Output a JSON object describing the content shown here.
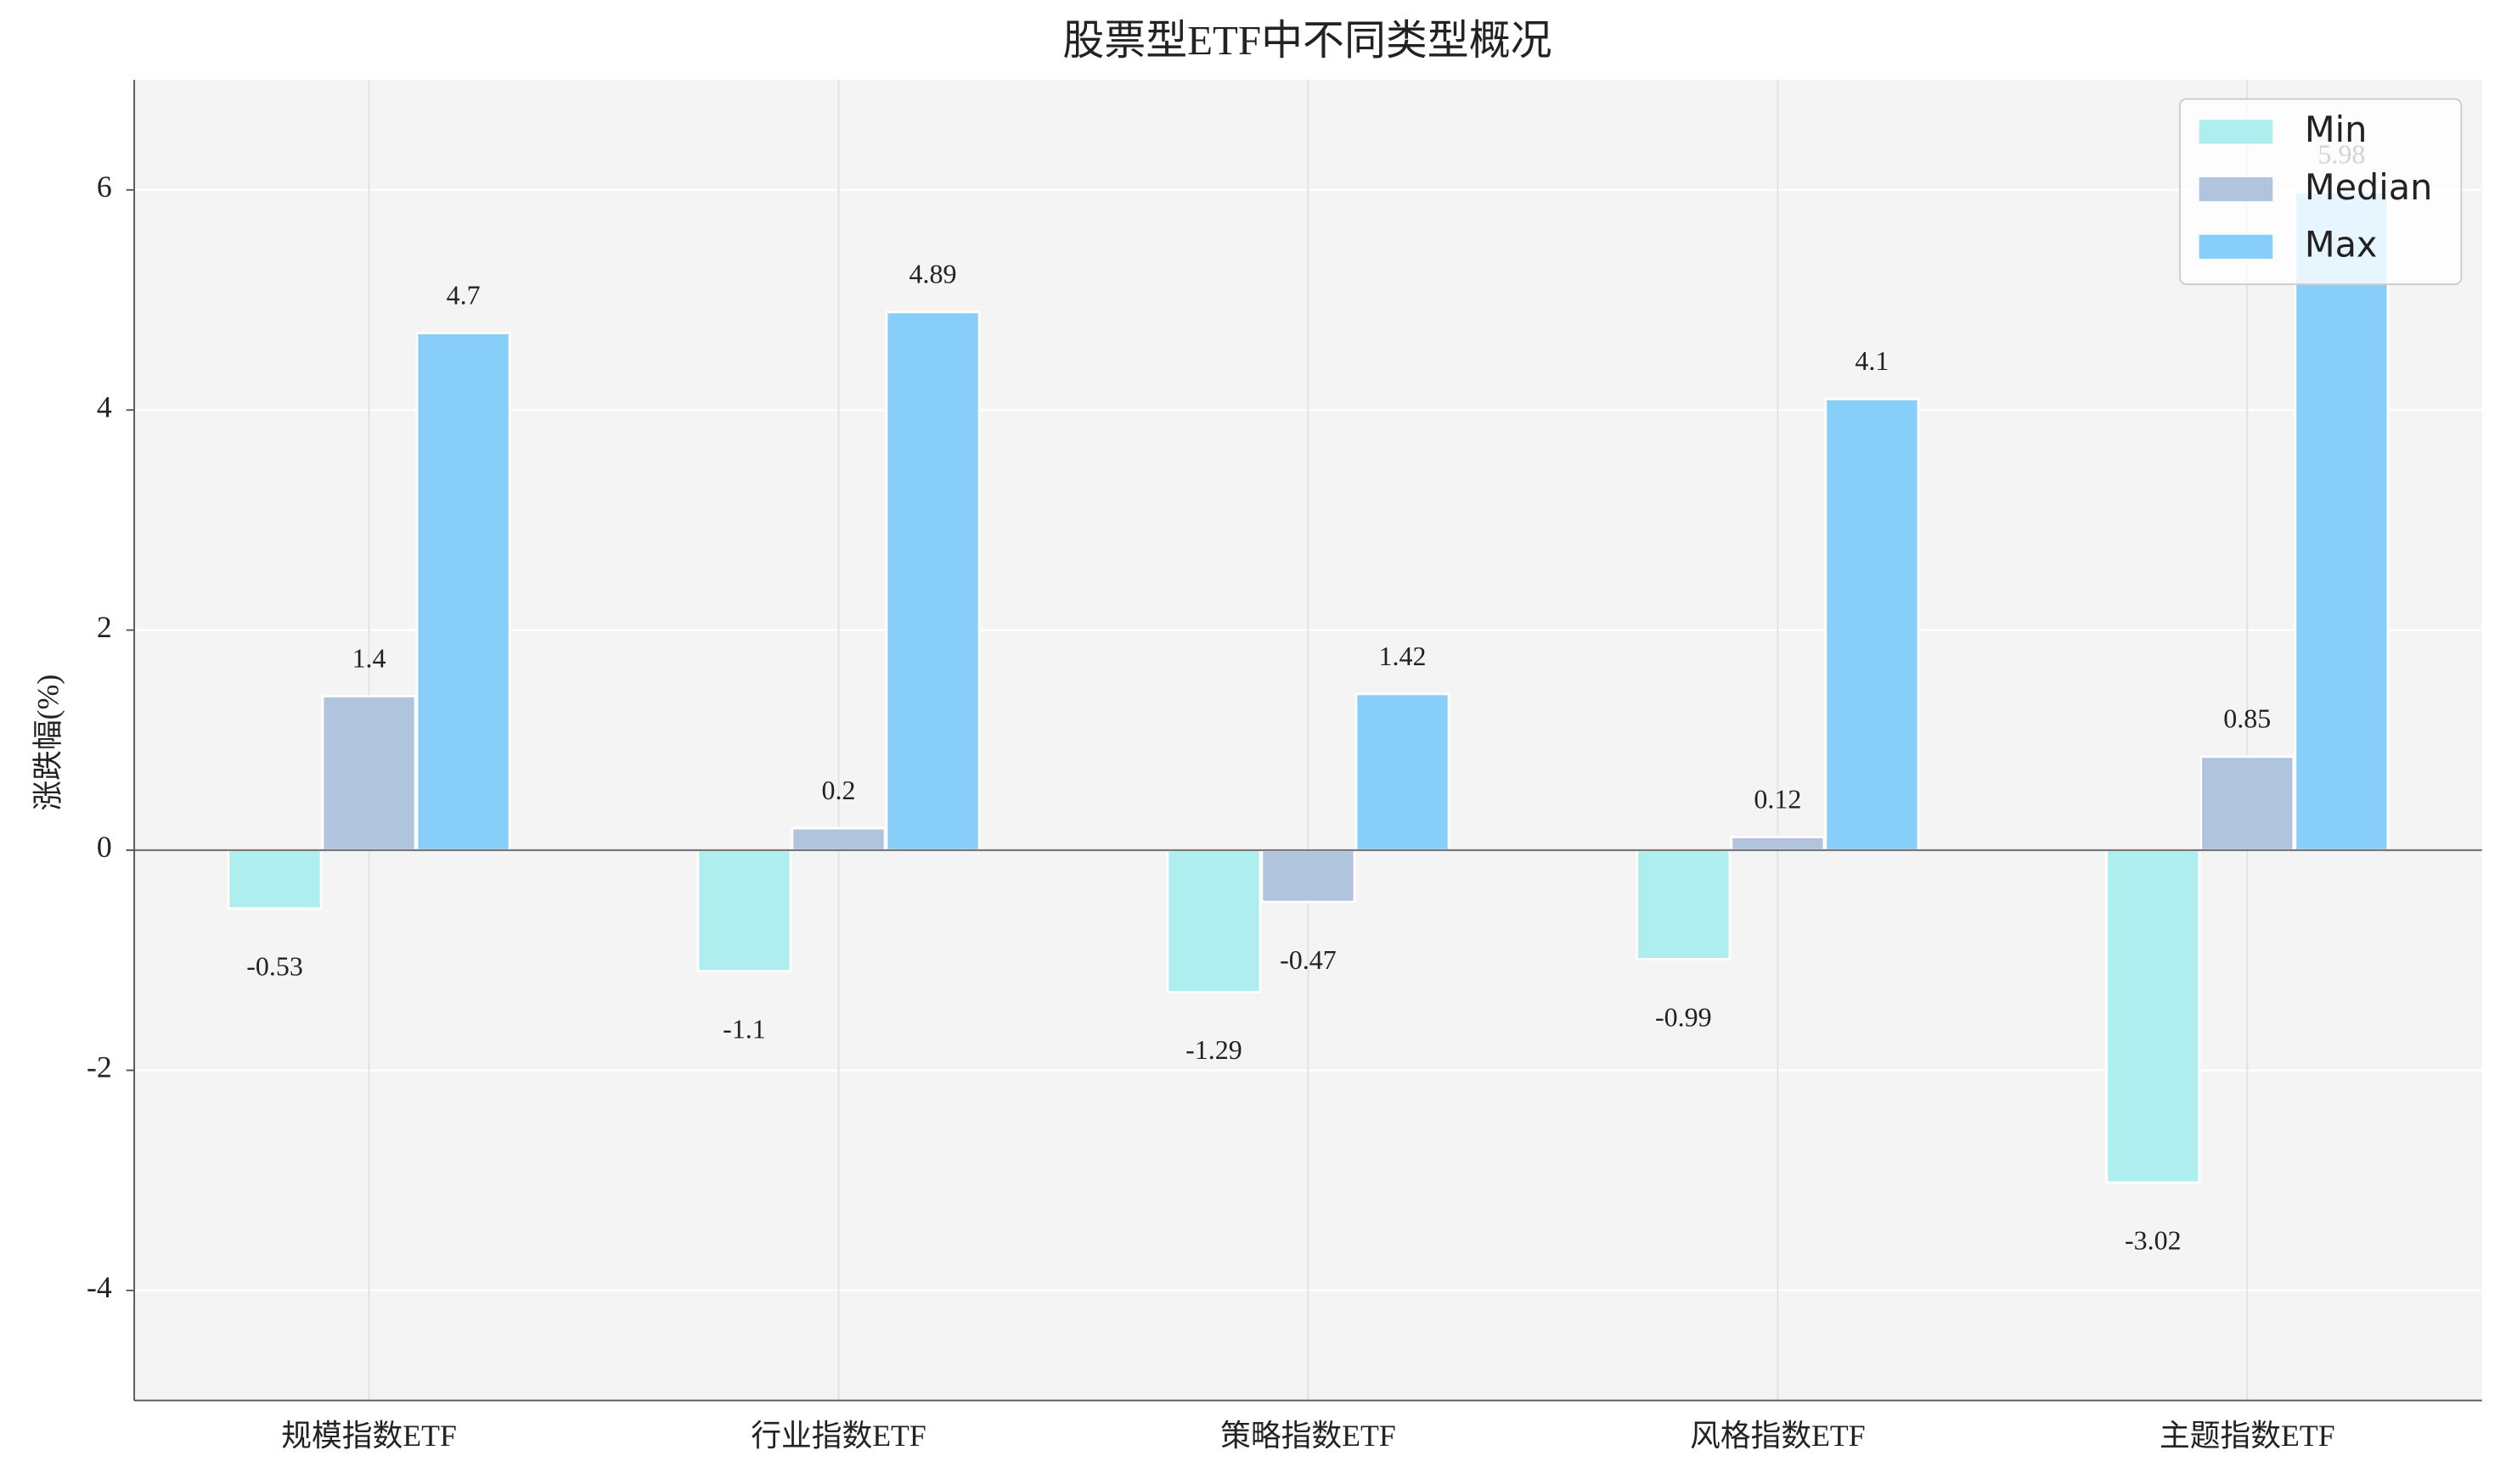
{
  "chart_data": {
    "type": "bar",
    "title": "股票型ETF中不同类型概况",
    "y_label": "涨跌幅(%)",
    "categories": [
      "规模指数ETF",
      "行业指数ETF",
      "策略指数ETF",
      "风格指数ETF",
      "主题指数ETF"
    ],
    "series": [
      {
        "name": "Min",
        "color": "#afeeee",
        "values": [
          -0.53,
          -1.1,
          -1.29,
          -0.99,
          -3.02
        ]
      },
      {
        "name": "Median",
        "color": "#b0c4de",
        "values": [
          1.4,
          0.2,
          -0.47,
          0.12,
          0.85
        ]
      },
      {
        "name": "Max",
        "color": "#87cefa",
        "values": [
          4.7,
          4.89,
          1.42,
          4.1,
          5.98
        ]
      }
    ],
    "ylim": [
      -5,
      7
    ],
    "yticks": [
      -4,
      -2,
      0,
      2,
      4,
      6
    ],
    "grid": true,
    "legend": "upper right"
  }
}
